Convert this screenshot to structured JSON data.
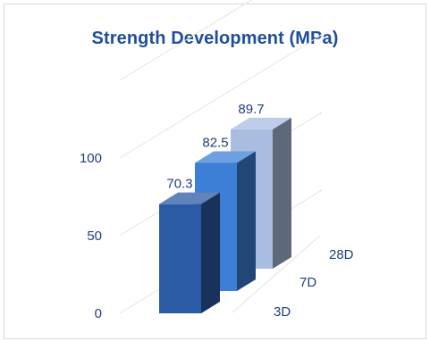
{
  "chart_data": {
    "type": "bar",
    "title": "Strength Development (MPa)",
    "xlabel": "",
    "ylabel": "",
    "categories": [
      "3D",
      "7D",
      "28D"
    ],
    "values": [
      70.3,
      82.5,
      89.7
    ],
    "yticks": [
      "0",
      "50",
      "100"
    ],
    "ylim": [
      0,
      150
    ],
    "grid": true,
    "legend": "none",
    "style": "3d-column",
    "colors": {
      "bars": [
        "#2b5aa6",
        "#3d7fd6",
        "#a9bde0"
      ],
      "text": "#1f3f7a",
      "title": "#1f4e9a",
      "grid": "#e3e3e3"
    }
  }
}
